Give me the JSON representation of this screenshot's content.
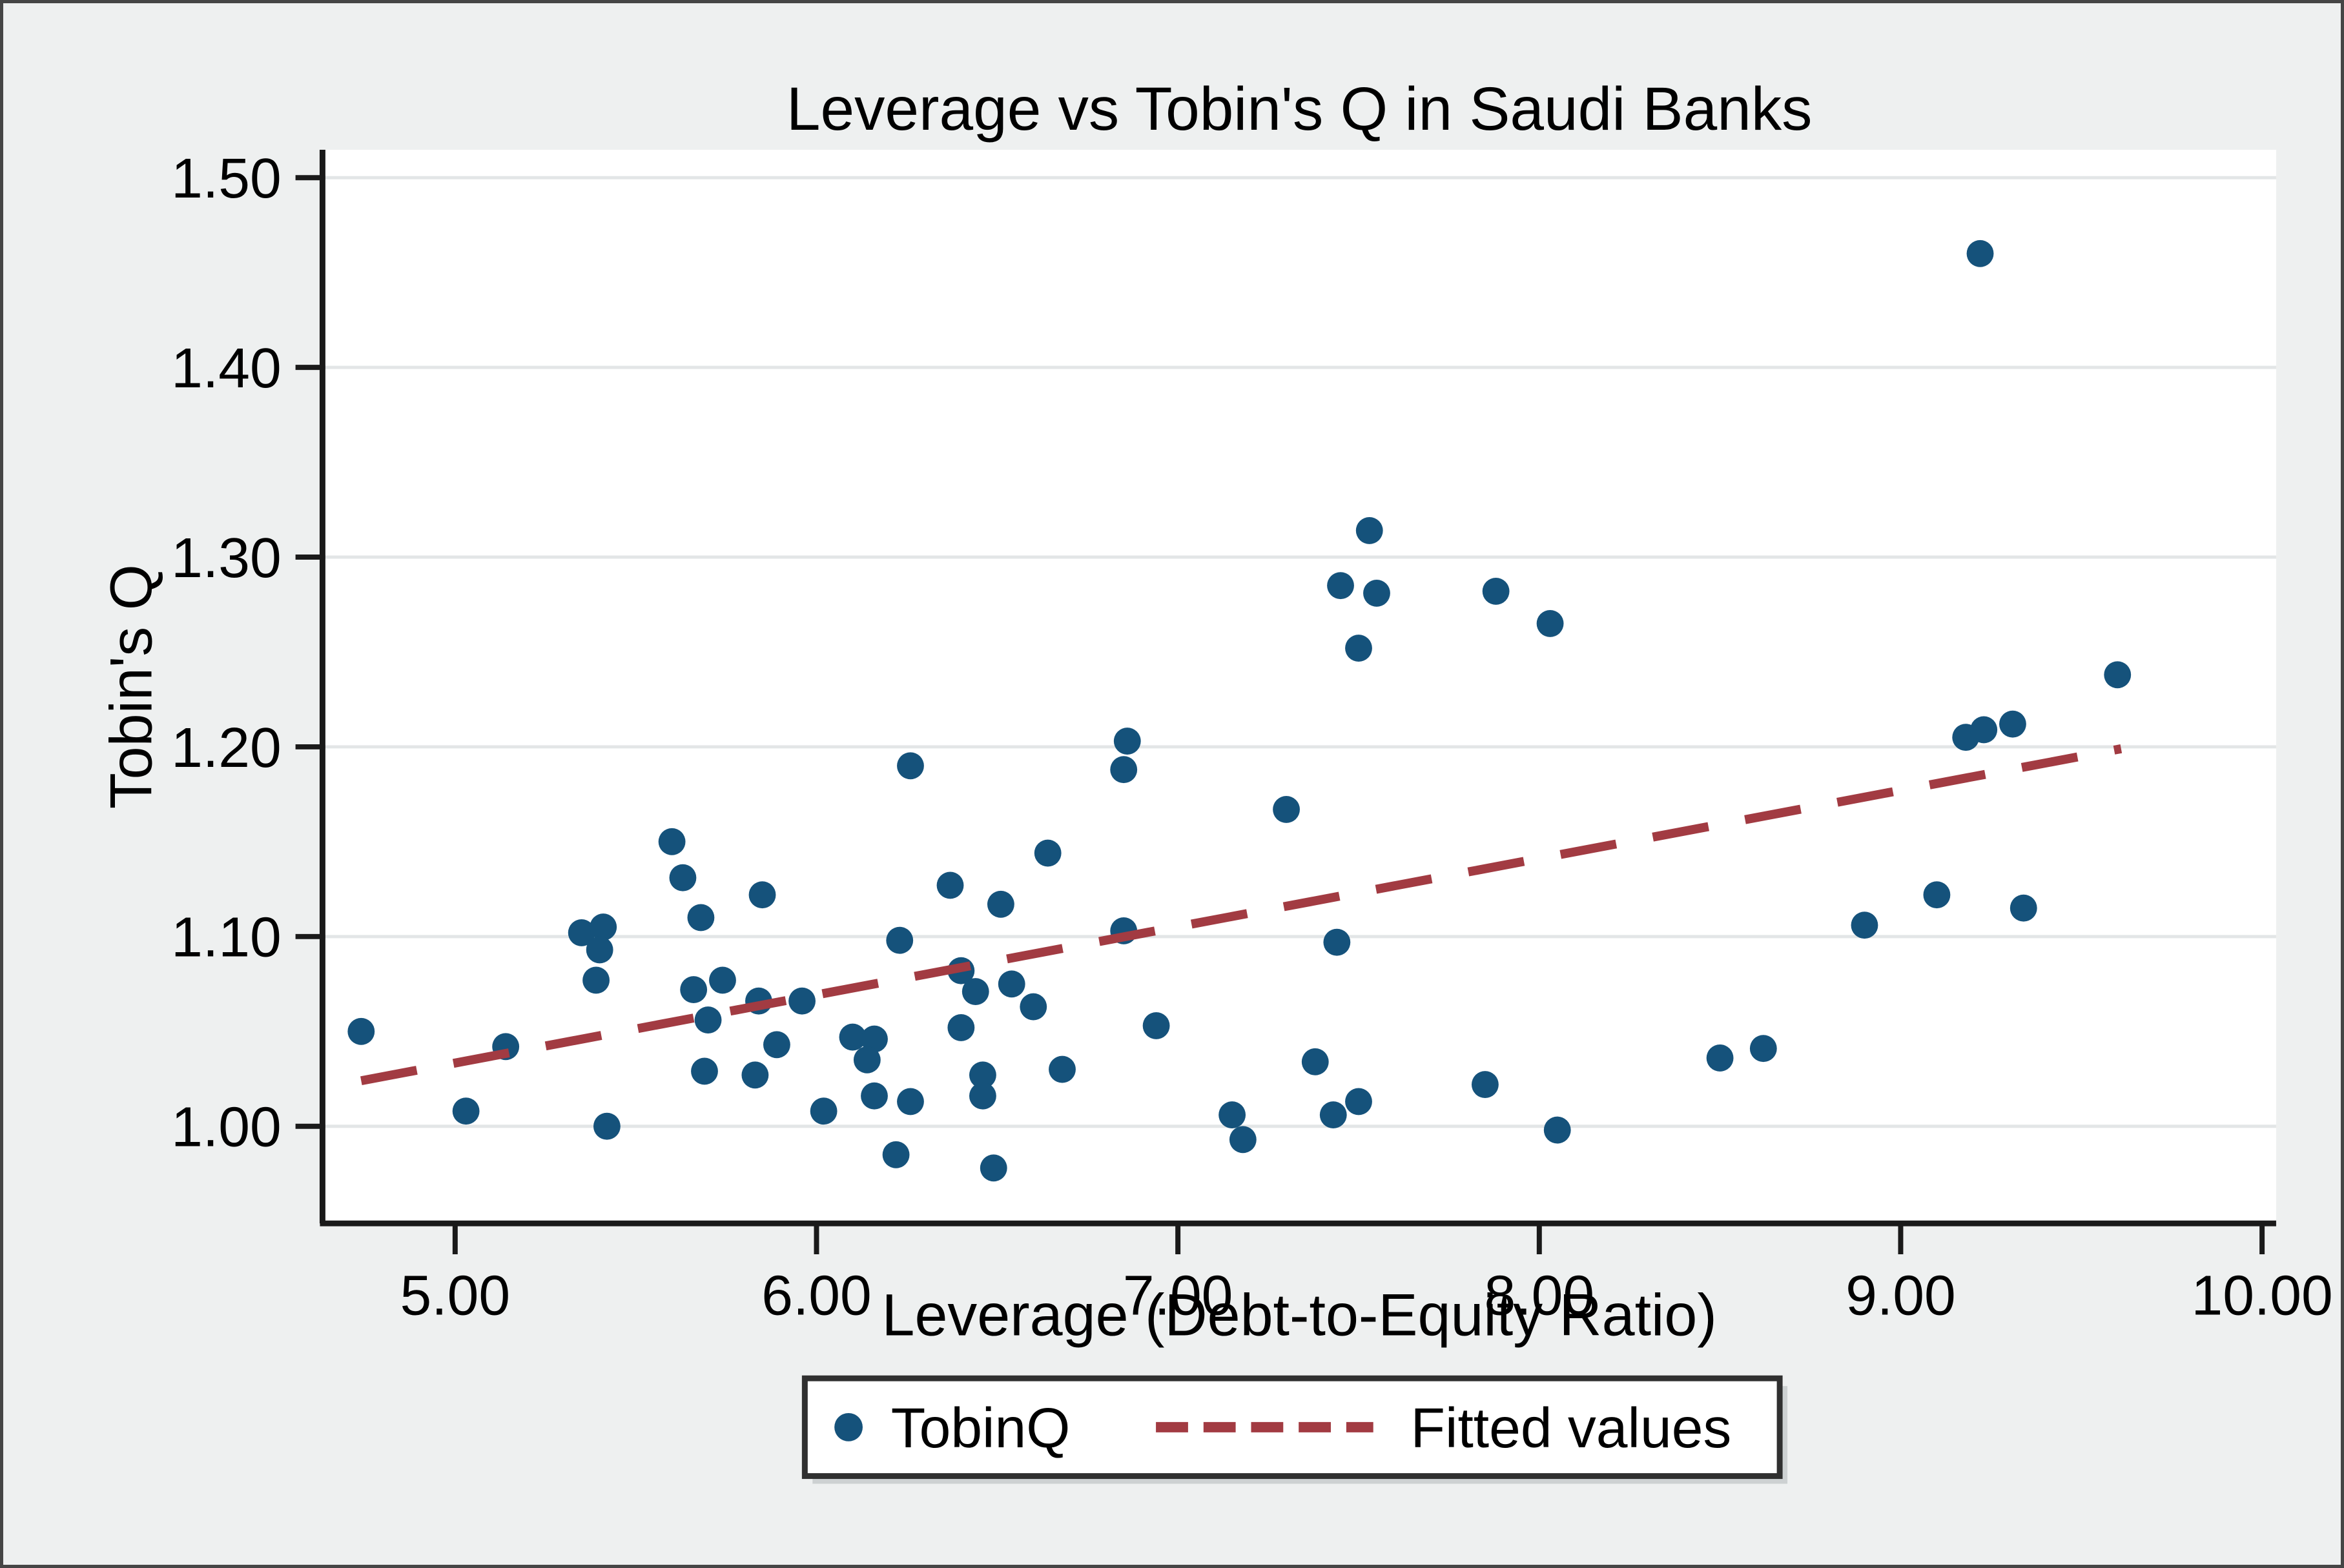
{
  "figure": {
    "title": "Leverage vs Tobin's Q in Saudi Banks"
  },
  "colors": {
    "background": "#EEF0F0",
    "plot_background": "#FFFFFF",
    "gridline": "#E3E6E7",
    "axis": "#1A1A1A",
    "text": "#000000",
    "marker": "#15527B",
    "fitted_line": "#A23B42",
    "legend_border": "#303030",
    "legend_shadow": "#CDD1D2"
  },
  "chart_data": {
    "type": "scatter",
    "title": "Leverage vs Tobin's Q in Saudi Banks",
    "xlabel": "Leverage (Debt-to-Equity Ratio)",
    "ylabel": "Tobin's Q",
    "xlim": [
      4.633,
      10.039
    ],
    "ylim": [
      0.9488,
      1.5147
    ],
    "grid": "horizontal-only",
    "x_ticks": [
      {
        "value": 5,
        "label": "5.00"
      },
      {
        "value": 6,
        "label": "6.00"
      },
      {
        "value": 7,
        "label": "7.00"
      },
      {
        "value": 8,
        "label": "8.00"
      },
      {
        "value": 9,
        "label": "9.00"
      },
      {
        "value": 10,
        "label": "10.00"
      }
    ],
    "y_ticks": [
      {
        "value": 1.0,
        "label": "1.00"
      },
      {
        "value": 1.1,
        "label": "1.10"
      },
      {
        "value": 1.2,
        "label": "1.20"
      },
      {
        "value": 1.3,
        "label": "1.30"
      },
      {
        "value": 1.4,
        "label": "1.40"
      },
      {
        "value": 1.5,
        "label": "1.50"
      }
    ],
    "legend": {
      "position": "bottom-center",
      "entries": [
        {
          "label": "TobinQ",
          "symbol": "marker"
        },
        {
          "label": "Fitted values",
          "symbol": "dashed-line"
        }
      ]
    },
    "series": [
      {
        "name": "TobinQ",
        "type": "scatter",
        "color": "#15527B",
        "points": [
          [
            4.74,
            1.05
          ],
          [
            5.03,
            1.008
          ],
          [
            5.14,
            1.042
          ],
          [
            5.42,
            1.0
          ],
          [
            5.35,
            1.102
          ],
          [
            5.41,
            1.105
          ],
          [
            5.4,
            1.093
          ],
          [
            5.39,
            1.077
          ],
          [
            5.6,
            1.15
          ],
          [
            5.63,
            1.131
          ],
          [
            5.68,
            1.11
          ],
          [
            5.85,
            1.122
          ],
          [
            5.66,
            1.072
          ],
          [
            5.74,
            1.077
          ],
          [
            5.7,
            1.056
          ],
          [
            5.84,
            1.066
          ],
          [
            5.96,
            1.066
          ],
          [
            5.89,
            1.043
          ],
          [
            5.69,
            1.029
          ],
          [
            5.83,
            1.027
          ],
          [
            6.1,
            1.047
          ],
          [
            6.16,
            1.046
          ],
          [
            6.14,
            1.035
          ],
          [
            6.16,
            1.016
          ],
          [
            6.02,
            1.008
          ],
          [
            6.26,
            1.013
          ],
          [
            6.22,
            0.985
          ],
          [
            6.49,
            0.978
          ],
          [
            6.23,
            1.098
          ],
          [
            6.26,
            1.19
          ],
          [
            6.37,
            1.127
          ],
          [
            6.51,
            1.117
          ],
          [
            6.64,
            1.144
          ],
          [
            6.4,
            1.082
          ],
          [
            6.44,
            1.071
          ],
          [
            6.54,
            1.075
          ],
          [
            6.6,
            1.063
          ],
          [
            6.4,
            1.052
          ],
          [
            6.46,
            1.027
          ],
          [
            6.46,
            1.016
          ],
          [
            6.68,
            1.03
          ],
          [
            6.86,
            1.203
          ],
          [
            6.85,
            1.188
          ],
          [
            6.85,
            1.103
          ],
          [
            6.94,
            1.053
          ],
          [
            7.15,
            1.006
          ],
          [
            7.18,
            0.993
          ],
          [
            7.3,
            1.167
          ],
          [
            7.44,
            1.097
          ],
          [
            7.38,
            1.034
          ],
          [
            7.43,
            1.006
          ],
          [
            7.5,
            1.013
          ],
          [
            7.53,
            1.314
          ],
          [
            7.45,
            1.285
          ],
          [
            7.55,
            1.281
          ],
          [
            7.88,
            1.282
          ],
          [
            8.03,
            1.265
          ],
          [
            7.5,
            1.252
          ],
          [
            7.85,
            1.022
          ],
          [
            8.05,
            0.998
          ],
          [
            8.5,
            1.036
          ],
          [
            8.62,
            1.041
          ],
          [
            8.9,
            1.106
          ],
          [
            9.1,
            1.122
          ],
          [
            9.34,
            1.115
          ],
          [
            9.18,
            1.205
          ],
          [
            9.23,
            1.209
          ],
          [
            9.31,
            1.212
          ],
          [
            9.6,
            1.238
          ],
          [
            9.22,
            1.46
          ]
        ]
      },
      {
        "name": "Fitted values",
        "type": "line",
        "style": "dashed",
        "color": "#A23B42",
        "points": [
          [
            4.74,
            1.024
          ],
          [
            9.61,
            1.199
          ]
        ]
      }
    ]
  }
}
